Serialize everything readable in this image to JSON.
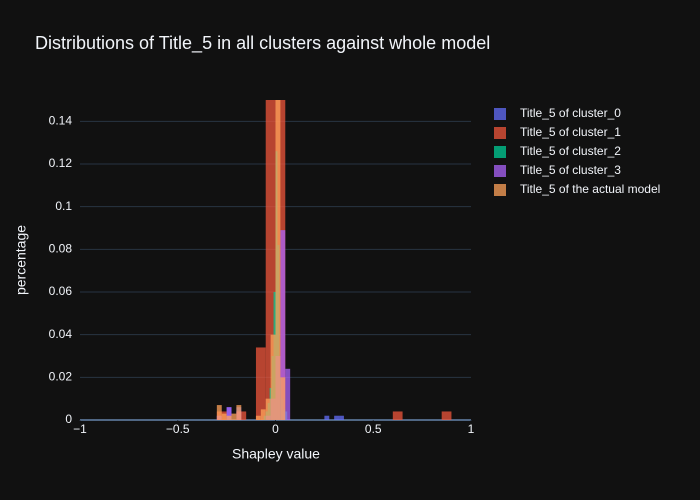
{
  "chart_data": {
    "type": "histogram",
    "barmode": "overlay",
    "opacity": 0.75,
    "title": "Distributions of Title_5 in all clusters against whole model",
    "x_label": "Shapley value",
    "y_label": "percentage",
    "xlim": [
      -1,
      1
    ],
    "xticks": [
      {
        "value": -1,
        "label": "−1"
      },
      {
        "value": -0.5,
        "label": "−0.5"
      },
      0,
      0.5,
      1
    ],
    "ylim": [
      0,
      0.15
    ],
    "yticks": [
      0,
      0.02,
      0.04,
      0.06,
      0.08,
      0.1,
      0.12,
      0.14
    ],
    "grid": true,
    "series": [
      {
        "name": "Title_5 of cluster_0",
        "color": "#636efa",
        "bins": [
          -0.3,
          -0.275,
          -0.25,
          -0.225,
          -0.2,
          -0.175,
          -0.15,
          -0.125,
          -0.1,
          -0.075,
          -0.05,
          -0.025,
          0,
          0.025,
          0.05,
          0.075,
          0.1,
          0.125,
          0.15,
          0.175,
          0.2,
          0.225,
          0.25,
          0.275,
          0.3,
          0.325,
          0.35
        ],
        "values": [
          0.002,
          0,
          0.006,
          0,
          0.006,
          0,
          0,
          0,
          0,
          0,
          0.002,
          0.008,
          0.01,
          0.004,
          0,
          0,
          0,
          0,
          0,
          0,
          0,
          0,
          0.002,
          0,
          0.002,
          0.002
        ]
      },
      {
        "name": "Title_5 of cluster_1",
        "color": "#ef553b",
        "bins": [
          -0.3,
          -0.25,
          -0.2,
          -0.15,
          -0.1,
          -0.05,
          0,
          0.05,
          0.1,
          0.15,
          0.2,
          0.25,
          0.3,
          0.35,
          0.4,
          0.45,
          0.5,
          0.55,
          0.6,
          0.65,
          0.7,
          0.75,
          0.8,
          0.85,
          0.9
        ],
        "values": [
          0.004,
          0,
          0.004,
          0,
          0.034,
          0.15,
          0.15,
          0,
          0,
          0,
          0,
          0,
          0,
          0,
          0,
          0,
          0,
          0,
          0.004,
          0,
          0,
          0,
          0,
          0.004
        ]
      },
      {
        "name": "Title_5 of cluster_2",
        "color": "#00cc96",
        "bins": [
          -0.06,
          -0.05,
          -0.04,
          -0.03,
          -0.02,
          -0.01,
          0,
          0.01,
          0.02,
          0.03,
          0.04,
          0.05,
          0.06
        ],
        "values": [
          0.002,
          0.004,
          0.008,
          0.015,
          0.03,
          0.06,
          0.126,
          0.082,
          0.02,
          0.01,
          0.005,
          0.004
        ]
      },
      {
        "name": "Title_5 of cluster_3",
        "color": "#ab63fa",
        "bins": [
          -0.3,
          -0.275,
          -0.25,
          -0.225,
          -0.2,
          -0.175,
          -0.15,
          -0.125,
          -0.1,
          -0.075,
          -0.05,
          -0.025,
          0,
          0.025,
          0.05,
          0.075
        ],
        "values": [
          0.002,
          0,
          0.006,
          0,
          0.004,
          0,
          0,
          0,
          0,
          0,
          0.002,
          0.01,
          0.03,
          0.089,
          0.024
        ]
      },
      {
        "name": "Title_5 of the actual model",
        "color": "#ffa15a",
        "bins": [
          -0.3,
          -0.275,
          -0.25,
          -0.225,
          -0.2,
          -0.175,
          -0.15,
          -0.125,
          -0.1,
          -0.075,
          -0.05,
          -0.025,
          0,
          0.025,
          0.05
        ],
        "values": [
          0.007,
          0.003,
          0.002,
          0.003,
          0.007,
          0,
          0,
          0,
          0.002,
          0.005,
          0.01,
          0.04,
          0.15,
          0.02
        ]
      }
    ]
  }
}
